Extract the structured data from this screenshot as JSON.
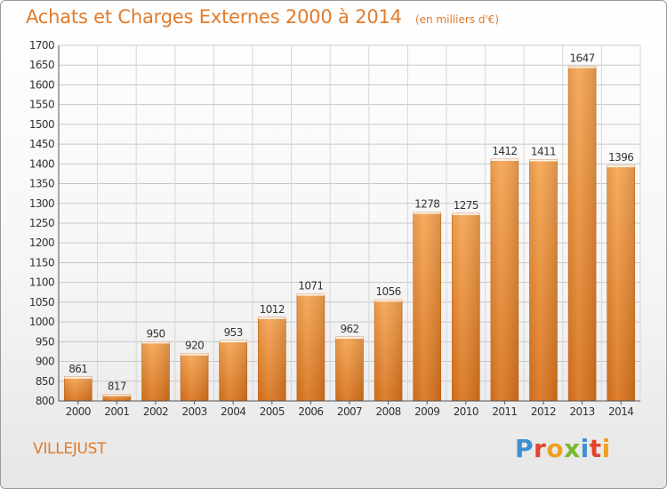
{
  "chart_data": {
    "type": "bar",
    "title": "Achats et Charges Externes 2000 à 2014",
    "subtitle": "(en milliers d'€)",
    "categories": [
      "2000",
      "2001",
      "2002",
      "2003",
      "2004",
      "2005",
      "2006",
      "2007",
      "2008",
      "2009",
      "2010",
      "2011",
      "2012",
      "2013",
      "2014"
    ],
    "values": [
      861,
      817,
      950,
      920,
      953,
      1012,
      1071,
      962,
      1056,
      1278,
      1275,
      1412,
      1411,
      1647,
      1396
    ],
    "ylim": [
      800,
      1700
    ],
    "yticks": [
      800,
      850,
      900,
      950,
      1000,
      1050,
      1100,
      1150,
      1200,
      1250,
      1300,
      1350,
      1400,
      1450,
      1500,
      1550,
      1600,
      1650,
      1700
    ],
    "grid": true,
    "bar_color": "#f08a2c"
  },
  "footer": {
    "town": "VILLEJUST",
    "brand": "Proxiti",
    "brand_colors": [
      "#3f8fd2",
      "#e2452c",
      "#f0a020",
      "#7ab829",
      "#3f8fd2",
      "#e2452c",
      "#f0a020"
    ]
  }
}
